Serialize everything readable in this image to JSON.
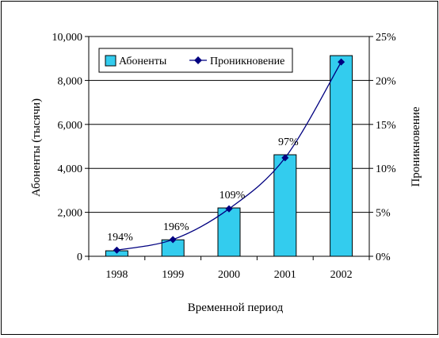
{
  "chart_data": {
    "type": "bar",
    "categories": [
      "1998",
      "1999",
      "2000",
      "2001",
      "2002"
    ],
    "series": [
      {
        "name": "Абоненты",
        "type": "bar",
        "axis": "left",
        "color": "#33CCEE",
        "values": [
          250,
          750,
          2200,
          4620,
          9130
        ]
      },
      {
        "name": "Проникновение",
        "type": "line",
        "axis": "right",
        "color": "#000080",
        "values": [
          0.7,
          1.9,
          5.4,
          11.2,
          22.1
        ],
        "labels": [
          "194%",
          "196%",
          "109%",
          "97%",
          ""
        ]
      }
    ],
    "xlabel": "Временной период",
    "ylabel": "Абоненты (тысячи)",
    "y2label": "Проникновение",
    "ylim": [
      0,
      10000
    ],
    "y2lim": [
      0,
      25
    ],
    "yticks": [
      "0",
      "2,000",
      "4,000",
      "6,000",
      "8,000",
      "10,000"
    ],
    "y2ticks": [
      "0%",
      "5%",
      "10%",
      "15%",
      "20%",
      "25%"
    ],
    "grid": true,
    "legend": "top-left"
  }
}
